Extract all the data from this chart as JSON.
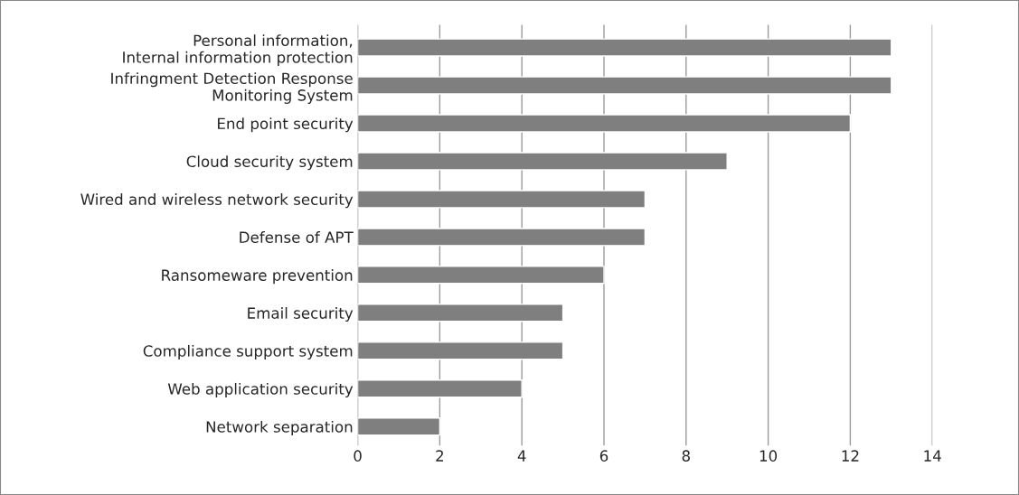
{
  "chart_data": {
    "type": "bar",
    "orientation": "horizontal",
    "categories": [
      "Personal information,\nInternal information protection",
      "Infringment Detection Response\nMonitoring System",
      "End point security",
      "Cloud security system",
      "Wired and wireless network security",
      "Defense of APT",
      "Ransomeware prevention",
      "Email security",
      "Compliance support system",
      "Web application security",
      "Network separation"
    ],
    "values": [
      13,
      13,
      12,
      9,
      7,
      7,
      6,
      5,
      5,
      4,
      2
    ],
    "color": "#7f7f80",
    "xlim": [
      0,
      14
    ],
    "xticks": [
      0,
      2,
      4,
      6,
      8,
      10,
      12,
      14
    ],
    "grid": "x",
    "legend": false
  }
}
